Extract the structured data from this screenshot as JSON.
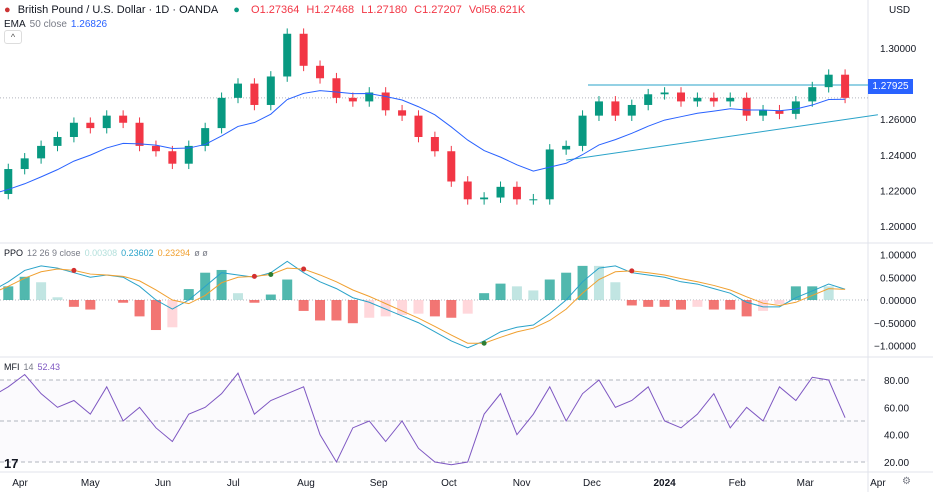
{
  "header": {
    "symbol": "British Pound / U.S. Dollar · 1D · OANDA",
    "open": "O1.27364",
    "high": "H1.27468",
    "low": "L1.27180",
    "close": "C1.27207",
    "volume": "Vol58.621K",
    "currency": "USD",
    "collapse_icon": "chevron-up-icon"
  },
  "ema_legend": {
    "name": "EMA",
    "params": "50 close",
    "value": "1.26826"
  },
  "ppo_legend": {
    "name": "PPO",
    "params": "12 26 9 close",
    "hist": "0.00308",
    "ppo": "0.23602",
    "signal": "0.23294",
    "extra": "ø ø"
  },
  "mfi_legend": {
    "name": "MFI",
    "params": "14",
    "value": "52.43"
  },
  "price_label": "1.27925",
  "colors": {
    "up": "#089981",
    "down": "#f23645",
    "ema": "#2962ff",
    "ppo": "#2aa3c9",
    "signal": "#f0a030",
    "mfi": "#7e57c2",
    "price_tag": "#2962ff",
    "trend": "#2aa3c9"
  },
  "chart_data": [
    {
      "type": "candlestick",
      "title": "British Pound / U.S. Dollar · 1D · OANDA",
      "ylim": [
        1.19,
        1.315
      ],
      "y_ticks": [
        "1.30000",
        "1.26000",
        "1.24000",
        "1.22000",
        "1.20000"
      ],
      "x_ticks": [
        [
          "2023-04-01",
          "Apr"
        ],
        [
          "2023-05-01",
          "May"
        ],
        [
          "2023-06-01",
          "Jun"
        ],
        [
          "2023-07-01",
          "Jul"
        ],
        [
          "2023-08-01",
          "Aug"
        ],
        [
          "2023-09-01",
          "Sep"
        ],
        [
          "2023-10-01",
          "Oct"
        ],
        [
          "2023-11-01",
          "Nov"
        ],
        [
          "2023-12-01",
          "Dec"
        ],
        [
          "2024-01-01",
          "2024"
        ],
        [
          "2024-02-01",
          "Feb"
        ],
        [
          "2024-03-01",
          "Mar"
        ],
        [
          "2024-04-01",
          "Apr"
        ]
      ],
      "start": "2023-03-20",
      "step_days": 7,
      "close": [
        1.218,
        1.232,
        1.238,
        1.245,
        1.25,
        1.258,
        1.255,
        1.262,
        1.258,
        1.245,
        1.242,
        1.235,
        1.245,
        1.255,
        1.272,
        1.28,
        1.268,
        1.284,
        1.308,
        1.29,
        1.283,
        1.272,
        1.27,
        1.275,
        1.265,
        1.262,
        1.25,
        1.242,
        1.225,
        1.215,
        1.216,
        1.222,
        1.215,
        1.215,
        1.243,
        1.245,
        1.262,
        1.27,
        1.262,
        1.268,
        1.274,
        1.275,
        1.27,
        1.272,
        1.27,
        1.272,
        1.262,
        1.265,
        1.263,
        1.27,
        1.278,
        1.285,
        1.272
      ],
      "resistance": 1.2792,
      "support_line": [
        [
          "2023-11-20",
          1.237
        ],
        [
          "2024-04-01",
          1.2625
        ]
      ]
    },
    {
      "type": "line",
      "title": "PPO 12 26 9 close",
      "ylim": [
        -1.2,
        1.2
      ],
      "y_ticks": [
        "1.00000",
        "0.50000",
        "0.00000",
        "-0.50000",
        "-1.00000"
      ],
      "ppo": [
        0.2,
        0.4,
        0.65,
        0.75,
        0.7,
        0.6,
        0.5,
        0.55,
        0.5,
        0.3,
        0.0,
        -0.2,
        0.0,
        0.3,
        0.6,
        0.55,
        0.5,
        0.6,
        0.85,
        0.6,
        0.4,
        0.25,
        0.05,
        -0.05,
        -0.2,
        -0.35,
        -0.5,
        -0.7,
        -0.9,
        -1.05,
        -0.9,
        -0.7,
        -0.6,
        -0.55,
        -0.3,
        0.0,
        0.4,
        0.7,
        0.75,
        0.6,
        0.55,
        0.5,
        0.4,
        0.35,
        0.25,
        0.15,
        -0.05,
        -0.15,
        -0.15,
        0.05,
        0.2,
        0.35,
        0.236
      ],
      "signal": [
        0.15,
        0.3,
        0.48,
        0.62,
        0.68,
        0.65,
        0.57,
        0.55,
        0.52,
        0.42,
        0.22,
        0.0,
        -0.08,
        0.1,
        0.38,
        0.5,
        0.52,
        0.56,
        0.7,
        0.68,
        0.55,
        0.4,
        0.22,
        0.08,
        -0.08,
        -0.24,
        -0.4,
        -0.58,
        -0.77,
        -0.95,
        -0.95,
        -0.82,
        -0.7,
        -0.62,
        -0.45,
        -0.2,
        0.15,
        0.45,
        0.62,
        0.64,
        0.6,
        0.55,
        0.47,
        0.4,
        0.32,
        0.22,
        0.07,
        -0.07,
        -0.12,
        -0.05,
        0.1,
        0.25,
        0.233
      ]
    },
    {
      "type": "line",
      "title": "MFI 14",
      "ylim": [
        15,
        88
      ],
      "y_ticks": [
        "80.00",
        "60.00",
        "40.00",
        "20.00"
      ],
      "bands": [
        80,
        50,
        20
      ],
      "values": [
        68,
        75,
        84,
        70,
        60,
        65,
        55,
        75,
        50,
        60,
        45,
        35,
        55,
        60,
        70,
        85,
        55,
        65,
        70,
        75,
        40,
        20,
        45,
        50,
        35,
        50,
        30,
        20,
        18,
        20,
        55,
        70,
        40,
        55,
        75,
        50,
        70,
        80,
        60,
        65,
        75,
        50,
        45,
        55,
        70,
        45,
        60,
        50,
        75,
        65,
        82,
        80,
        52.43
      ]
    }
  ]
}
